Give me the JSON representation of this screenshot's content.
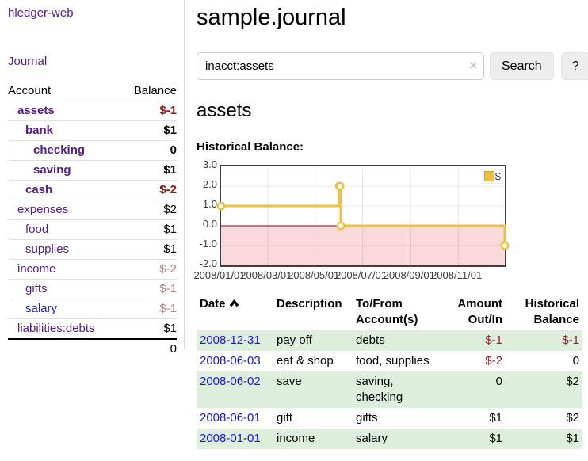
{
  "colors": {
    "visited_link_purple": "#551A8B",
    "link_blue": "#1414EE",
    "negative_dark_red": "#a01313",
    "negative_light_rose": "#c08383",
    "register_negative_red": "#8e2121",
    "row_stripe_green": "#ddeedd",
    "chart_line_gold": "#edc240",
    "chart_negative_fill_pink": "#f9d9d9",
    "chart_zero_line_red": "#8b0000"
  },
  "brand": {
    "title": "hledger-web"
  },
  "nav": {
    "journal": "Journal"
  },
  "sidebar": {
    "headers": {
      "account": "Account",
      "balance": "Balance"
    },
    "accounts": [
      {
        "name": "assets",
        "balance": "$-1"
      },
      {
        "name": "bank",
        "balance": "$1"
      },
      {
        "name": "checking",
        "balance": "0"
      },
      {
        "name": "saving",
        "balance": "$1"
      },
      {
        "name": "cash",
        "balance": "$-2"
      },
      {
        "name": "expenses",
        "balance": "$2"
      },
      {
        "name": "food",
        "balance": "$1"
      },
      {
        "name": "supplies",
        "balance": "$1"
      },
      {
        "name": "income",
        "balance": "$-2"
      },
      {
        "name": "gifts",
        "balance": "$-1"
      },
      {
        "name": "salary",
        "balance": "$-1"
      },
      {
        "name": "liabilities:debts",
        "balance": "$1"
      }
    ],
    "total": "0"
  },
  "header": {
    "title": "sample.journal"
  },
  "search": {
    "value": "inacct:assets",
    "clear_icon": "×",
    "search_button": "Search",
    "help_button": "?"
  },
  "account_page": {
    "heading": "assets",
    "chart_title": "Historical Balance:"
  },
  "chart_data": {
    "type": "line",
    "step": true,
    "title": "Historical Balance:",
    "x_domain": [
      "2008-01-01",
      "2008-12-31"
    ],
    "ylim": [
      -2,
      3
    ],
    "y_ticks": [
      "3.0",
      "2.0",
      "1.0",
      "0.0",
      "-1.0",
      "-2.0"
    ],
    "x_ticks": [
      "2008/01/01",
      "2008/03/01",
      "2008/05/01",
      "2008/07/01",
      "2008/09/01",
      "2008/11/01"
    ],
    "grid": true,
    "grid_color": "rgba(0,0,0,0.09)",
    "negative_region_fill": "#f9d9d9",
    "zero_line_color": "#8b0000",
    "legend_position": "top-right",
    "series": [
      {
        "name": "$",
        "color": "#edc240",
        "points": [
          [
            "2008-01-01",
            1
          ],
          [
            "2008-06-01",
            2
          ],
          [
            "2008-06-02",
            2
          ],
          [
            "2008-06-03",
            0
          ],
          [
            "2008-12-31",
            -1
          ]
        ]
      }
    ]
  },
  "register": {
    "headers": {
      "date": "Date",
      "description": "Description",
      "accounts": "To/From Account(s)",
      "amount": "Amount Out/In",
      "balance": "Historical Balance"
    },
    "rows": [
      {
        "date": "2008-12-31",
        "description": "pay off",
        "accounts": "debts",
        "amount": "$-1",
        "balance": "$-1"
      },
      {
        "date": "2008-06-03",
        "description": "eat & shop",
        "accounts": "food, supplies",
        "amount": "$-2",
        "balance": "0"
      },
      {
        "date": "2008-06-02",
        "description": "save",
        "accounts": "saving, checking",
        "amount": "0",
        "balance": "$2"
      },
      {
        "date": "2008-06-01",
        "description": "gift",
        "accounts": "gifts",
        "amount": "$1",
        "balance": "$2"
      },
      {
        "date": "2008-01-01",
        "description": "income",
        "accounts": "salary",
        "amount": "$1",
        "balance": "$1"
      }
    ]
  }
}
